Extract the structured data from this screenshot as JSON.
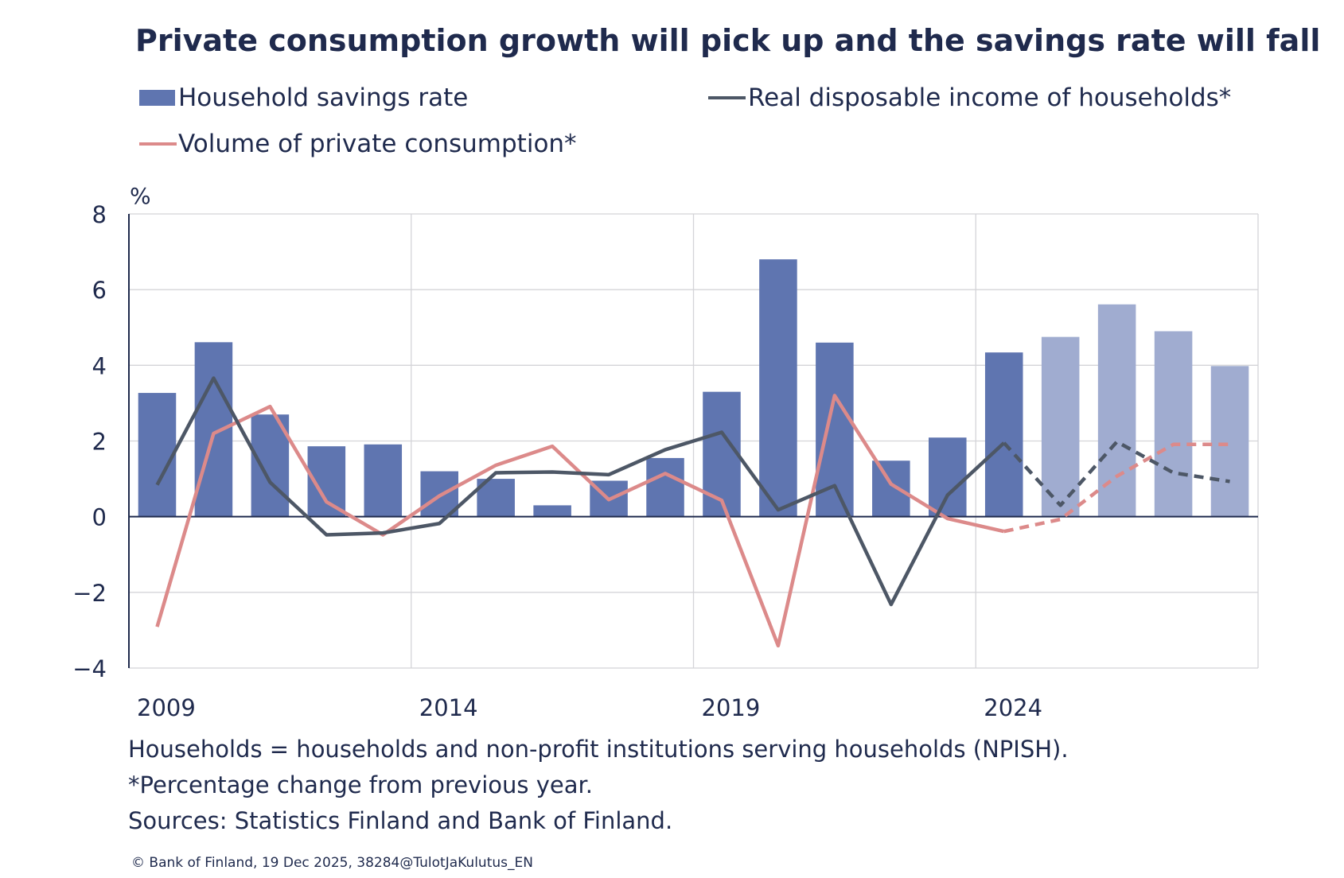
{
  "chart_data": {
    "type": "bar+line",
    "title": "Private consumption growth will pick up and the savings rate will fall",
    "ylabel": "%",
    "ylim": [
      -4,
      8
    ],
    "yticks": [
      "8",
      "6",
      "4",
      "2",
      "0",
      "−2",
      "−4"
    ],
    "ytick_values": [
      8,
      6,
      4,
      2,
      0,
      -2,
      -4
    ],
    "x_tick_labels": [
      "2009",
      "2014",
      "2019",
      "2024"
    ],
    "categories": [
      2009,
      2010,
      2011,
      2012,
      2013,
      2014,
      2015,
      2016,
      2017,
      2018,
      2019,
      2020,
      2021,
      2022,
      2023,
      2024,
      2025,
      2026,
      2027,
      2028
    ],
    "forecast_from": 2025,
    "grid": true,
    "legend_placement": "top",
    "series": [
      {
        "name": "Household savings rate",
        "kind": "bar",
        "color": "#5f75b0",
        "forecast_color": "#a0acd0",
        "values": [
          3.27,
          4.61,
          2.7,
          1.86,
          1.91,
          1.2,
          1.0,
          0.3,
          0.95,
          1.55,
          3.3,
          6.8,
          4.6,
          1.48,
          2.09,
          4.34,
          4.75,
          5.61,
          4.9,
          3.98
        ]
      },
      {
        "name": "Real disposable income of households*",
        "kind": "line",
        "color": "#4d5766",
        "values": [
          0.84,
          3.66,
          0.91,
          -0.48,
          -0.43,
          -0.18,
          1.16,
          1.18,
          1.11,
          1.77,
          2.23,
          0.18,
          0.82,
          -2.32,
          0.57,
          1.95,
          0.3,
          1.98,
          1.16,
          0.93
        ]
      },
      {
        "name": "Volume of private consumption*",
        "kind": "line",
        "color": "#dc8a8a",
        "values": [
          -2.91,
          2.2,
          2.91,
          0.39,
          -0.48,
          0.55,
          1.36,
          1.86,
          0.45,
          1.14,
          0.43,
          -3.41,
          3.2,
          0.86,
          -0.05,
          -0.39,
          -0.07,
          1.07,
          1.91,
          1.91
        ]
      }
    ]
  },
  "notes": [
    "Households = households and non-profit institutions serving households (NPISH).",
    "*Percentage change from previous year.",
    "Sources: Statistics Finland and Bank of Finland."
  ],
  "copyright": "© Bank of Finland, 19 Dec 2025, 38284@TulotJaKulutus_EN"
}
